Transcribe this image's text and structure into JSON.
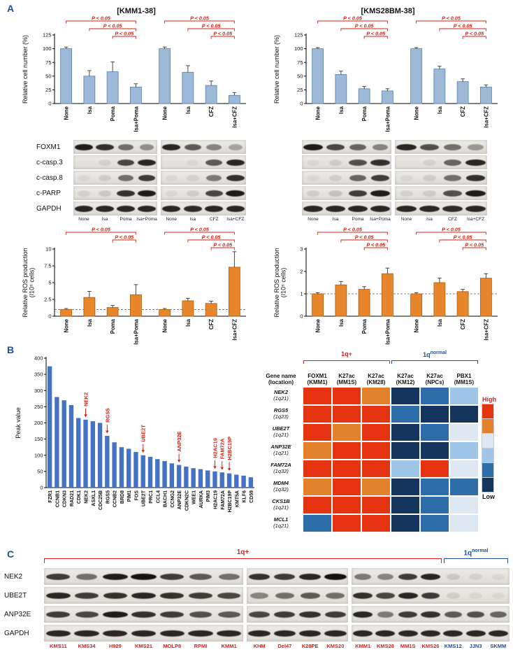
{
  "colors": {
    "panel_label": "#1f4e9c",
    "sig_red": "#d42314",
    "cell_bar": "#9db9d8",
    "cell_bar_edge": "#5a7fa8",
    "ros_bar": "#e8862c",
    "ros_bar_edge": "#b05c10",
    "peak_bar": "#4472c4",
    "k": "#1a1a1a",
    "r": "#e02020",
    "b": "#1f4e9c"
  },
  "panel_a": {
    "label": "A",
    "left_title": "[KMM1-38]",
    "right_title": "[KMS28BM-38]"
  },
  "panel_b": {
    "label": "B"
  },
  "panel_c": {
    "label": "C",
    "red_label": "1q+",
    "blue_label": "1q",
    "blue_sup": "normal"
  },
  "chart_data": {
    "kmm1_cell": {
      "type": "bar",
      "title": "[KMM1-38]",
      "ylabel": [
        "Relative cell number (%)"
      ],
      "categories": [
        "None",
        "Isa",
        "Poma",
        "Isa+Poma",
        "None",
        "Isa",
        "CFZ",
        "Isa+CFZ"
      ],
      "values": [
        100,
        50,
        58,
        30,
        100,
        57,
        33,
        15
      ],
      "errors": [
        3,
        10,
        18,
        6,
        3,
        12,
        8,
        5
      ],
      "ylim": [
        0,
        125
      ],
      "yticks": [
        0,
        25,
        50,
        75,
        100,
        125
      ],
      "bar": "cell_bar",
      "edge": "cell_bar_edge",
      "group_gap_after": 3,
      "sig_label": "P < 0.05",
      "brackets": [
        [
          0,
          3,
          0
        ],
        [
          1,
          3,
          1
        ],
        [
          2,
          3,
          2
        ],
        [
          4,
          7,
          0
        ],
        [
          5,
          7,
          1
        ],
        [
          6,
          7,
          2
        ]
      ]
    },
    "kms28_cell": {
      "type": "bar",
      "title": "[KMS28BM-38]",
      "ylabel": [
        "Relative cell number (%)"
      ],
      "categories": [
        "None",
        "Isa",
        "Poma",
        "Isa+Poma",
        "None",
        "Isa",
        "CFZ",
        "Isa+CFZ"
      ],
      "values": [
        100,
        53,
        27,
        23,
        100,
        63,
        40,
        30
      ],
      "errors": [
        2,
        6,
        4,
        4,
        2,
        5,
        5,
        4
      ],
      "ylim": [
        0,
        125
      ],
      "yticks": [
        0,
        25,
        50,
        75,
        100,
        125
      ],
      "bar": "cell_bar",
      "edge": "cell_bar_edge",
      "group_gap_after": 3,
      "sig_label": "P < 0.05",
      "brackets": [
        [
          0,
          3,
          0
        ],
        [
          1,
          3,
          1
        ],
        [
          2,
          3,
          2
        ],
        [
          4,
          7,
          0
        ],
        [
          5,
          7,
          1
        ],
        [
          6,
          7,
          2
        ]
      ]
    },
    "kmm1_ros": {
      "type": "bar",
      "ylabel": [
        "Relative ROS production",
        "(/10⁵ cells)"
      ],
      "categories": [
        "None",
        "Isa",
        "Poma",
        "Isa+Poma",
        "None",
        "Isa",
        "CFZ",
        "Isa+CFZ"
      ],
      "values": [
        1,
        2.8,
        1.3,
        3.2,
        1,
        2.3,
        1.9,
        7.3
      ],
      "errors": [
        0.15,
        0.9,
        0.3,
        1.5,
        0.15,
        0.35,
        0.35,
        2.3
      ],
      "ylim": [
        0,
        10
      ],
      "yticks": [
        0,
        2.5,
        5,
        7.5,
        10
      ],
      "baseline": 1,
      "bar": "ros_bar",
      "edge": "ros_bar_edge",
      "group_gap_after": 3,
      "sig_label": "P < 0.05",
      "brackets": [
        [
          0,
          3,
          0
        ],
        [
          2,
          3,
          1
        ],
        [
          4,
          7,
          0
        ],
        [
          5,
          7,
          1
        ],
        [
          6,
          7,
          2
        ]
      ]
    },
    "kms28_ros": {
      "type": "bar",
      "ylabel": [
        "Relative ROS production",
        "(/10⁵ cells)"
      ],
      "categories": [
        "None",
        "Isa",
        "Poma",
        "Isa+Poma",
        "None",
        "Isa",
        "CFZ",
        "Isa+CFZ"
      ],
      "values": [
        1,
        1.4,
        1.2,
        1.9,
        1,
        1.5,
        1.1,
        1.7
      ],
      "errors": [
        0.05,
        0.15,
        0.12,
        0.25,
        0.05,
        0.2,
        0.1,
        0.2
      ],
      "ylim": [
        0,
        3
      ],
      "yticks": [
        0,
        1,
        2,
        3
      ],
      "baseline": 1,
      "bar": "ros_bar",
      "edge": "ros_bar_edge",
      "group_gap_after": 3,
      "sig_label": "P < 0.05",
      "brackets": [
        [
          0,
          3,
          0
        ],
        [
          1,
          3,
          1
        ],
        [
          2,
          3,
          2
        ],
        [
          4,
          7,
          0
        ],
        [
          5,
          7,
          1
        ],
        [
          6,
          7,
          2
        ]
      ]
    },
    "peaks": {
      "type": "bar",
      "ylabel": [
        "Peak value"
      ],
      "categories": [
        "FZR1",
        "CCNB1",
        "CDKN3",
        "RAD21",
        "CDK1",
        "NEK2",
        "ASXL1",
        "CDC25B",
        "RGS5",
        "CCNB2",
        "BRD8",
        "PIM1",
        "FOS",
        "UBE2T",
        "PRC1",
        "CCL4",
        "BACH1",
        "CCNG2",
        "ANP32E",
        "CDKN2C",
        "WEE1",
        "AURKA",
        "PIM3",
        "H2AC19",
        "FAM72A",
        "H2BC19P",
        "KMT5A",
        "KLF6",
        "CD59"
      ],
      "values": [
        375,
        280,
        270,
        255,
        215,
        210,
        205,
        200,
        160,
        140,
        125,
        120,
        110,
        100,
        95,
        88,
        82,
        75,
        70,
        65,
        60,
        57,
        53,
        50,
        47,
        44,
        40,
        37,
        32
      ],
      "ylim": [
        0,
        400
      ],
      "yticks": [
        0,
        50,
        100,
        150,
        200,
        250,
        300,
        350,
        400
      ],
      "bar": "peak_bar",
      "cat_fs": 7,
      "annotations": [
        [
          "NEK2",
          5
        ],
        [
          "RGS5",
          8
        ],
        [
          "UBE2T",
          13
        ],
        [
          "ANP32E",
          18
        ],
        [
          "H2AC19",
          23
        ],
        [
          "FAM72A",
          24
        ],
        [
          "H2BC19P",
          25
        ]
      ]
    }
  },
  "blots": {
    "kmm1": {
      "rows": [
        {
          "label": "FOXM1",
          "strips": [
            [
              0.95,
              0.85,
              0.55,
              0.4
            ],
            [
              0.9,
              0.65,
              0.45,
              0.3
            ]
          ]
        },
        {
          "label": "c-casp.3",
          "strips": [
            [
              0,
              0.08,
              0.75,
              0.9
            ],
            [
              0,
              0.05,
              0.65,
              0.9
            ]
          ]
        },
        {
          "label": "c-casp.8",
          "strips": [
            [
              0.05,
              0.1,
              0.55,
              0.8
            ],
            [
              0.05,
              0.08,
              0.5,
              0.85
            ]
          ]
        },
        {
          "label": "c-PARP",
          "strips": [
            [
              0.08,
              0.12,
              0.85,
              0.95
            ],
            [
              0.05,
              0.1,
              0.75,
              0.95
            ]
          ]
        },
        {
          "label": "GAPDH",
          "strips": [
            [
              0.9,
              0.9,
              0.9,
              0.9
            ],
            [
              0.9,
              0.88,
              0.9,
              0.9
            ]
          ]
        }
      ],
      "lane_labels": [
        [
          [
            "None",
            "k"
          ],
          [
            "Isa",
            "k"
          ],
          [
            "Poma",
            "k"
          ],
          [
            "Isa+Poma",
            "k"
          ]
        ],
        [
          [
            "None",
            "k"
          ],
          [
            "Isa",
            "k"
          ],
          [
            "CFZ",
            "k"
          ],
          [
            "Isa+CFZ",
            "k"
          ]
        ]
      ]
    },
    "kms28": {
      "rows": [
        {
          "label": "",
          "strips": [
            [
              0.95,
              0.75,
              0.6,
              0.45
            ],
            [
              0.9,
              0.7,
              0.55,
              0.35
            ]
          ]
        },
        {
          "label": "",
          "strips": [
            [
              0.05,
              0.1,
              0.7,
              0.85
            ],
            [
              0,
              0.08,
              0.6,
              0.9
            ]
          ]
        },
        {
          "label": "",
          "strips": [
            [
              0.05,
              0.1,
              0.6,
              0.8
            ],
            [
              0.05,
              0.1,
              0.55,
              0.85
            ]
          ]
        },
        {
          "label": "",
          "strips": [
            [
              0.1,
              0.15,
              0.8,
              0.95
            ],
            [
              0.08,
              0.1,
              0.7,
              0.95
            ]
          ]
        },
        {
          "label": "",
          "strips": [
            [
              0.9,
              0.9,
              0.9,
              0.9
            ],
            [
              0.9,
              0.9,
              0.88,
              0.9
            ]
          ]
        }
      ],
      "lane_labels": [
        [
          [
            "None",
            "k"
          ],
          [
            "Isa",
            "k"
          ],
          [
            "Poma",
            "k"
          ],
          [
            "Isa+Poma",
            "k"
          ]
        ],
        [
          [
            "None",
            "k"
          ],
          [
            "Isa",
            "k"
          ],
          [
            "CFZ",
            "k"
          ],
          [
            "Isa+CFZ",
            "k"
          ]
        ]
      ]
    },
    "panel_c": {
      "rows": [
        {
          "label": "NEK2",
          "strips": [
            [
              0.8,
              0.55,
              0.95,
              1,
              0.8,
              0.65,
              0.55
            ],
            [
              0.85,
              0.8,
              0.9,
              1
            ],
            [
              0.5,
              0.45,
              0.8,
              0.9,
              0.12,
              0.08,
              0.05
            ]
          ]
        },
        {
          "label": "UBE2T",
          "strips": [
            [
              0.9,
              0.8,
              0.85,
              0.9,
              0.85,
              0.8,
              0.75
            ],
            [
              0.45,
              0.55,
              0.65,
              0.55
            ],
            [
              0.85,
              0.75,
              0.9,
              0.8,
              0.1,
              0.06,
              0.05
            ]
          ]
        },
        {
          "label": "ANP32E",
          "strips": [
            [
              0.8,
              0.75,
              0.95,
              0.85,
              0.8,
              0.7,
              0.65
            ],
            [
              0.75,
              0.8,
              0.85,
              0.8
            ],
            [
              0.9,
              0.5,
              0.8,
              0.85,
              0.65,
              0.7,
              0.6
            ]
          ]
        },
        {
          "label": "GAPDH",
          "strips": [
            [
              0.9,
              0.9,
              0.9,
              0.9,
              0.9,
              0.9,
              0.9
            ],
            [
              0.9,
              0.9,
              0.9,
              0.9
            ],
            [
              0.9,
              0.9,
              0.9,
              0.9,
              0.9,
              0.9,
              0.9
            ]
          ]
        }
      ],
      "lane_labels": [
        [
          [
            "KMS11",
            "r"
          ],
          [
            "KMS34",
            "r"
          ],
          [
            "H929",
            "r"
          ],
          [
            "KMS21",
            "r"
          ],
          [
            "MOLP8",
            "r"
          ],
          [
            "RPMI",
            "r"
          ],
          [
            "KMM1",
            "r"
          ]
        ],
        [
          [
            "KHM",
            "r"
          ],
          [
            "Del47",
            "r"
          ],
          [
            "K28PE",
            "r"
          ],
          [
            "KMS20",
            "r"
          ]
        ],
        [
          [
            "KMM1",
            "r"
          ],
          [
            "KMS28",
            "r"
          ],
          [
            "MM1S",
            "r"
          ],
          [
            "KMS26",
            "r"
          ],
          [
            "KMS12",
            "b"
          ],
          [
            "JJN3",
            "b"
          ],
          [
            "SKMM",
            "b"
          ]
        ]
      ]
    }
  },
  "heatmap": {
    "corner": [
      "Gene name",
      "(location)"
    ],
    "groups": [
      {
        "label": "1q+",
        "span": 3,
        "color": "r"
      },
      {
        "label": "1q",
        "sup": "normal",
        "span": 3,
        "color": "b"
      }
    ],
    "columns": [
      {
        "name": "FOXM1",
        "sub": "(KMM1)"
      },
      {
        "name": "K27ac",
        "sub": "(MM1S)"
      },
      {
        "name": "K27ac",
        "sub": "(KM28)"
      },
      {
        "name": "K27ac",
        "sub": "(KM12)"
      },
      {
        "name": "K27ac",
        "sub": "(NPCs)"
      },
      {
        "name": "PBX1",
        "sub": "(MM1S)"
      }
    ],
    "rows": [
      {
        "gene": "NEK2",
        "loc": "(1q21)",
        "cells": [
          "R",
          "R",
          "O",
          "N",
          "M",
          "L"
        ]
      },
      {
        "gene": "RGS5",
        "loc": "(1q23)",
        "cells": [
          "R",
          "R",
          "R",
          "M",
          "N",
          "N"
        ]
      },
      {
        "gene": "UBE2T",
        "loc": "(1q21)",
        "cells": [
          "R",
          "O",
          "R",
          "N",
          "M",
          "P"
        ]
      },
      {
        "gene": "ANP32E",
        "loc": "(1q21)",
        "cells": [
          "O",
          "R",
          "R",
          "N",
          "N",
          "L"
        ]
      },
      {
        "gene": "FAM72A",
        "loc": "(1q32)",
        "cells": [
          "R",
          "R",
          "R",
          "L",
          "R",
          "P"
        ]
      },
      {
        "gene": "MDM4",
        "loc": "(1q32)",
        "cells": [
          "O",
          "R",
          "O",
          "N",
          "M",
          "M"
        ]
      },
      {
        "gene": "CKS1B",
        "loc": "(1q21)",
        "cells": [
          "R",
          "R",
          "R",
          "N",
          "M",
          "P"
        ]
      },
      {
        "gene": "MCL1",
        "loc": "(1q21)",
        "cells": [
          "M",
          "R",
          "R",
          "N",
          "M",
          "P"
        ]
      }
    ],
    "palette": {
      "R": "#e63312",
      "O": "#e2812c",
      "P": "#dde8f3",
      "L": "#9fc5e8",
      "M": "#2d6da8",
      "N": "#16355c"
    },
    "legend": {
      "high": "High",
      "low": "Low",
      "order": [
        "R",
        "O",
        "P",
        "L",
        "M",
        "N"
      ]
    }
  }
}
